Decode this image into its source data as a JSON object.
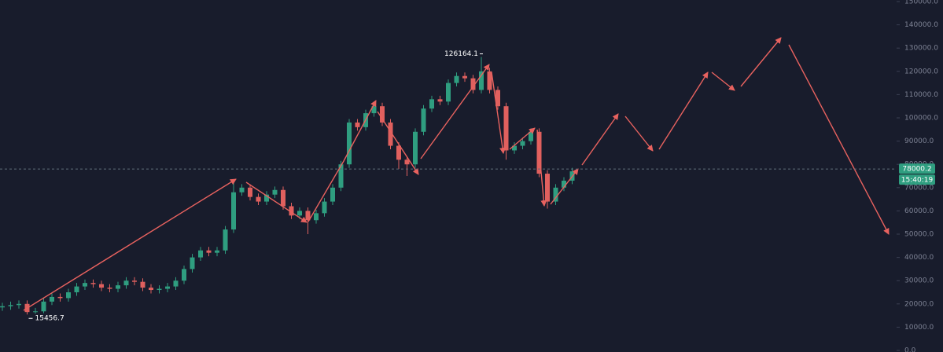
{
  "chart_data": {
    "type": "candlestick",
    "open": [
      18500,
      19000,
      19500,
      20000,
      16500,
      16800,
      21000,
      23000,
      22500,
      25000,
      27500,
      29000,
      28500,
      27000,
      26500,
      28000,
      30000,
      29500,
      27000,
      26000,
      26500,
      27500,
      30000,
      35000,
      40000,
      43000,
      42000,
      43000,
      52000,
      68000,
      70000,
      66000,
      64000,
      67000,
      69000,
      62000,
      58000,
      60000,
      56000,
      59000,
      64000,
      70000,
      80000,
      98000,
      96000,
      102000,
      105000,
      98000,
      88000,
      82000,
      80000,
      94000,
      104000,
      108000,
      107000,
      115000,
      118000,
      117000,
      112000,
      120000,
      112000,
      105000,
      86000,
      88000,
      90000,
      94000,
      76000,
      64000,
      70000,
      73000
    ],
    "high": [
      20500,
      21000,
      21500,
      21500,
      18300,
      22500,
      24500,
      24500,
      26500,
      29000,
      30500,
      30500,
      30000,
      28500,
      29500,
      31500,
      31500,
      31000,
      28500,
      28000,
      29000,
      31500,
      36500,
      41500,
      44500,
      44500,
      44500,
      53500,
      73500,
      71500,
      71500,
      67500,
      68500,
      70500,
      70500,
      63500,
      61500,
      61500,
      60500,
      65500,
      71500,
      81500,
      99500,
      99500,
      103500,
      107000,
      106500,
      99500,
      89500,
      83500,
      95500,
      105500,
      109500,
      109500,
      116500,
      119500,
      119500,
      118500,
      126164.1,
      121500,
      113500,
      106500,
      89500,
      91500,
      95500,
      95500,
      77500,
      71500,
      74500,
      78500
    ],
    "low": [
      17000,
      17500,
      18000,
      15456.7,
      15800,
      16000,
      19500,
      21000,
      21000,
      23500,
      26000,
      27000,
      25500,
      25000,
      25000,
      26500,
      28000,
      25500,
      24500,
      24500,
      25000,
      26000,
      28500,
      33500,
      38500,
      40500,
      40500,
      41500,
      50500,
      66500,
      64500,
      62500,
      62500,
      65500,
      60500,
      56500,
      56500,
      50000,
      54500,
      57500,
      62500,
      68500,
      78500,
      94500,
      94500,
      100500,
      96500,
      86500,
      78000,
      75000,
      78500,
      92500,
      102500,
      105500,
      105500,
      113500,
      115500,
      110500,
      110500,
      110500,
      103500,
      82000,
      84500,
      86500,
      88500,
      74500,
      61000,
      62500,
      68500,
      71500
    ],
    "close": [
      19000,
      19500,
      20000,
      16500,
      16800,
      21000,
      23000,
      22500,
      25000,
      27500,
      29000,
      28500,
      27000,
      26500,
      28000,
      30000,
      29500,
      27000,
      26000,
      26500,
      27500,
      30000,
      35000,
      40000,
      43000,
      42000,
      43000,
      52000,
      68000,
      70000,
      66000,
      64000,
      67000,
      69000,
      62000,
      58000,
      60000,
      56000,
      59000,
      64000,
      70000,
      80000,
      98000,
      96000,
      102000,
      105000,
      98000,
      88000,
      82000,
      80000,
      94000,
      104000,
      108000,
      107000,
      115000,
      118000,
      117000,
      112000,
      120000,
      112000,
      105000,
      86000,
      88000,
      90000,
      94000,
      76000,
      64000,
      70000,
      73000,
      77000
    ],
    "up_color": "#2f9e80",
    "down_color": "#e0605e",
    "current_price": 78000.2,
    "countdown": "15:40:19",
    "ylim": [
      0,
      150000
    ],
    "yticks": [
      {
        "value": 0,
        "label": "0.0"
      },
      {
        "value": 10000,
        "label": "10000.0"
      },
      {
        "value": 20000,
        "label": "20000.0"
      },
      {
        "value": 30000,
        "label": "30000.0"
      },
      {
        "value": 40000,
        "label": "40000.0"
      },
      {
        "value": 50000,
        "label": "50000.0"
      },
      {
        "value": 60000,
        "label": "60000.0"
      },
      {
        "value": 70000,
        "label": "70000.0"
      },
      {
        "value": 80000,
        "label": "80000.0"
      },
      {
        "value": 90000,
        "label": "90000.0"
      },
      {
        "value": 100000,
        "label": "100000.0"
      },
      {
        "value": 110000,
        "label": "110000.0"
      },
      {
        "value": 120000,
        "label": "120000.0"
      },
      {
        "value": 130000,
        "label": "130000.0"
      },
      {
        "value": 140000,
        "label": "140000.0"
      },
      {
        "value": 150000,
        "label": "150000.0"
      }
    ]
  }
}
